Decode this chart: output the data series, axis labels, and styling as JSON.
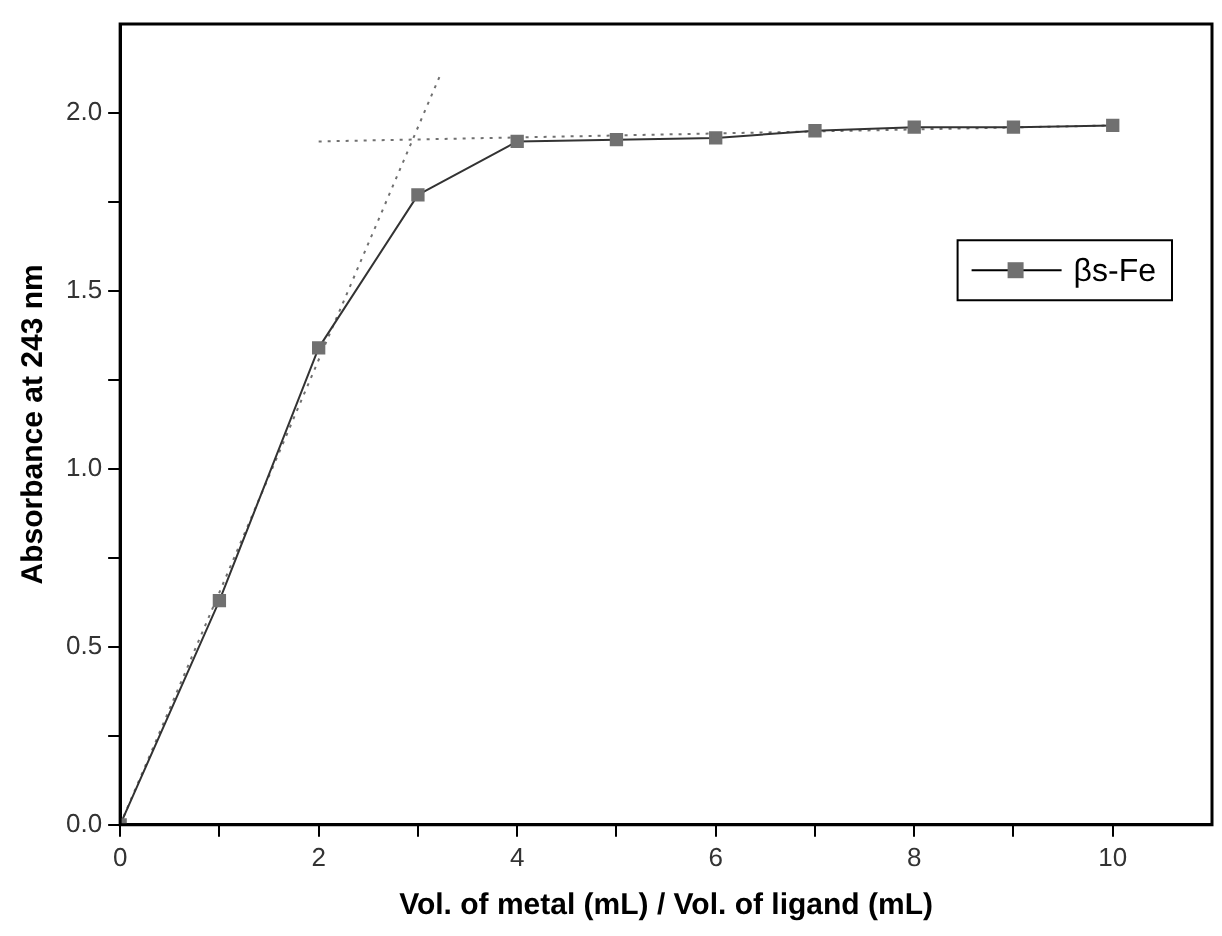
{
  "chart_data": {
    "type": "line",
    "xlabel": "Vol. of metal (mL) / Vol. of ligand (mL)",
    "ylabel": "Absorbance at 243 nm",
    "x": [
      0,
      1,
      2,
      3,
      4,
      5,
      6,
      7,
      8,
      9,
      10
    ],
    "series": [
      {
        "name": "βs-Fe",
        "color": "#707070",
        "marker": "square",
        "values": [
          0,
          0.63,
          1.34,
          1.77,
          1.92,
          1.925,
          1.93,
          1.95,
          1.96,
          1.96,
          1.965
        ]
      },
      {
        "type": "line",
        "x": [
          0,
          3.23
        ],
        "values": [
          0,
          2.11
        ],
        "color": "#707070",
        "line_style": "dotted",
        "marker": "none"
      },
      {
        "type": "line",
        "x": [
          2,
          10
        ],
        "values": [
          1.92,
          1.965
        ],
        "color": "#707070",
        "line_style": "dotted",
        "marker": "none"
      }
    ],
    "xlim": [
      0,
      11
    ],
    "xticks": [
      0,
      {
        "value": 1,
        "label": null
      },
      2,
      {
        "value": 3,
        "label": null
      },
      4,
      {
        "value": 5,
        "label": null
      },
      6,
      {
        "value": 7,
        "label": null
      },
      8,
      {
        "value": 9,
        "label": null
      },
      10
    ],
    "ylim": [
      0,
      2.25
    ],
    "yticks": [
      {
        "value": 0,
        "label": "0.0"
      },
      {
        "value": 0.25,
        "label": null
      },
      {
        "value": 0.5,
        "label": "0.5"
      },
      {
        "value": 0.75,
        "label": null
      },
      {
        "value": 1,
        "label": "1.0"
      },
      {
        "value": 1.25,
        "label": null
      },
      {
        "value": 1.5,
        "label": "1.5"
      },
      {
        "value": 1.75,
        "label": null
      },
      {
        "value": 2,
        "label": "2.0"
      }
    ],
    "grid": false,
    "legend": "right"
  }
}
